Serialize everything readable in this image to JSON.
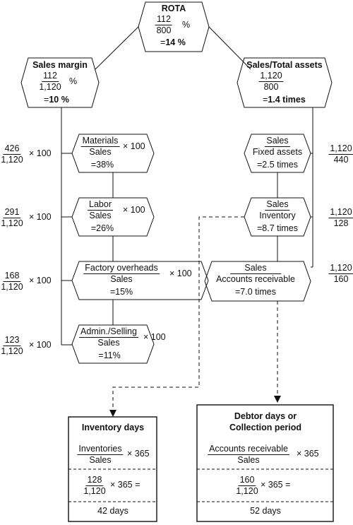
{
  "rota": {
    "title": "ROTA",
    "num": "112",
    "den": "800",
    "pct": "%",
    "result_prefix": "=",
    "result": "14 %"
  },
  "sales_margin": {
    "title": "Sales margin",
    "num": "112",
    "den": "1,120",
    "pct": "%",
    "result_prefix": "=",
    "result": "10 %"
  },
  "sales_total_assets": {
    "title": "Sales/Total assets",
    "num": "1,120",
    "den": "800",
    "result_prefix": "=",
    "result": "1.4 times"
  },
  "left_ratios": [
    {
      "num": "426",
      "den": "1,120",
      "times": "× 100"
    },
    {
      "num": "291",
      "den": "1,120",
      "times": "× 100"
    },
    {
      "num": "168",
      "den": "1,120",
      "times": "× 100"
    },
    {
      "num": "123",
      "den": "1,120",
      "times": "× 100"
    }
  ],
  "cost_boxes": [
    {
      "num": "Materials",
      "den": "Sales",
      "times": "× 100",
      "result": "=38%"
    },
    {
      "num": "Labor",
      "den": "Sales",
      "times": "× 100",
      "result": "=26%"
    },
    {
      "num": "Factory overheads",
      "den": "Sales",
      "times": "× 100",
      "result": "=15%"
    },
    {
      "num": "Admin./Selling",
      "den": "Sales",
      "times": "× 100",
      "result": "=11%"
    }
  ],
  "asset_boxes": [
    {
      "num": "Sales",
      "den": "Fixed assets",
      "result": "=2.5 times"
    },
    {
      "num": "Sales",
      "den": "Inventory",
      "result": "=8.7 times"
    },
    {
      "num": "Sales",
      "den": "Accounts receivable",
      "result": "=7.0 times"
    }
  ],
  "right_ratios": [
    {
      "num": "1,120",
      "den": "440"
    },
    {
      "num": "1,120",
      "den": "128"
    },
    {
      "num": "1,120",
      "den": "160"
    }
  ],
  "inventory_days": {
    "title": "Inventory days",
    "formula_num": "Inventories",
    "formula_den": "Sales",
    "formula_times": "× 365",
    "calc_num": "128",
    "calc_den": "1,120",
    "calc_times": "× 365 =",
    "result": "42 days"
  },
  "debtor_days": {
    "title_line1": "Debtor days or",
    "title_line2": "Collection period",
    "formula_num": "Accounts receivable",
    "formula_den": "Sales",
    "formula_times": "× 365",
    "calc_num": "160",
    "calc_den": "1,120",
    "calc_times": "× 365 =",
    "result": "52 days"
  }
}
